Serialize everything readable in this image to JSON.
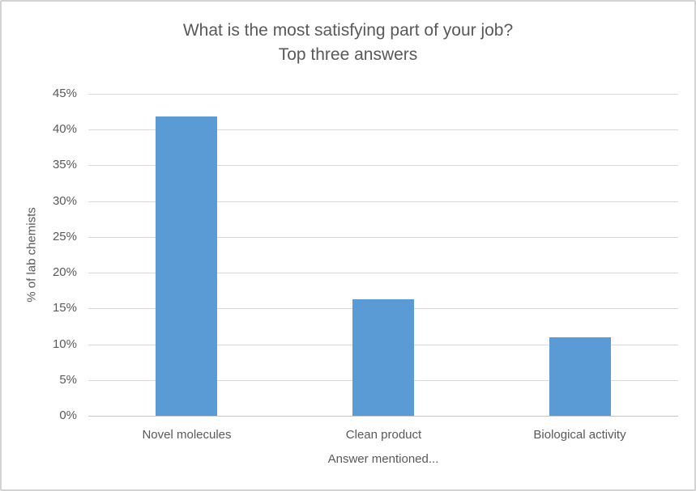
{
  "chart_data": {
    "type": "bar",
    "title": "What is the most satisfying part of your job?",
    "subtitle": "Top three answers",
    "xlabel": "Answer mentioned...",
    "ylabel": "% of lab chemists",
    "categories": [
      "Novel molecules",
      "Clean product",
      "Biological activity"
    ],
    "values": [
      41.8,
      16.3,
      11.0
    ],
    "ylim": [
      0,
      45
    ],
    "ytick_step": 5,
    "ytick_suffix": "%",
    "grid": true,
    "legend": false,
    "bar_color": "#5b9bd5",
    "text_color": "#595959",
    "gridline_color": "#d9d9d9",
    "axisline_color": "#c6c6c6",
    "border_color": "#d3d3d3"
  }
}
